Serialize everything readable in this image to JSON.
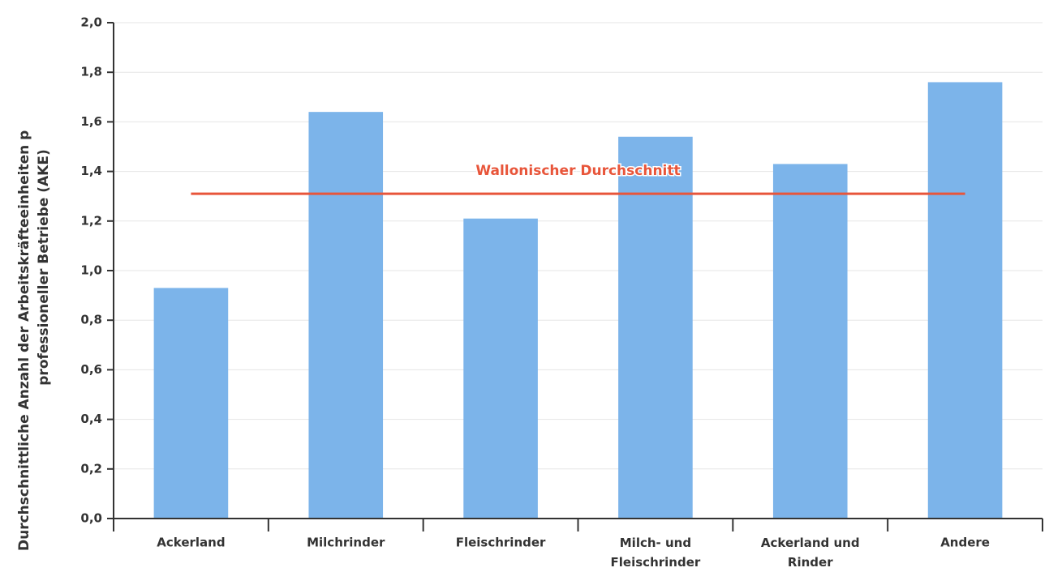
{
  "chart_data": {
    "type": "bar",
    "ylabel": [
      "Durchschnittliche Anzahl der Arbeitskräfteeinheiten p",
      "professioneller Betriebe (AKE)"
    ],
    "categories": [
      "Ackerland",
      "Milchrinder",
      "Fleischrinder",
      "Milch- und Fleischrinder",
      "Ackerland und Rinder",
      "Andere"
    ],
    "values": [
      0.93,
      1.64,
      1.21,
      1.54,
      1.43,
      1.76
    ],
    "color": "#7cb4ea",
    "reference_line": {
      "label": "Wallonischer Durchschnitt",
      "value": 1.31,
      "color": "#e8553a"
    },
    "ylim": [
      0,
      2
    ],
    "yticks": [
      {
        "value": 0,
        "label": "0,0"
      },
      {
        "value": 0.2,
        "label": "0,2"
      },
      {
        "value": 0.4,
        "label": "0,4"
      },
      {
        "value": 0.6,
        "label": "0,6"
      },
      {
        "value": 0.8,
        "label": "0,8"
      },
      {
        "value": 1.0,
        "label": "1,0"
      },
      {
        "value": 1.2,
        "label": "1,2"
      },
      {
        "value": 1.4,
        "label": "1,4"
      },
      {
        "value": 1.6,
        "label": "1,6"
      },
      {
        "value": 1.8,
        "label": "1,8"
      },
      {
        "value": 2.0,
        "label": "2,0"
      }
    ],
    "grid": true
  }
}
